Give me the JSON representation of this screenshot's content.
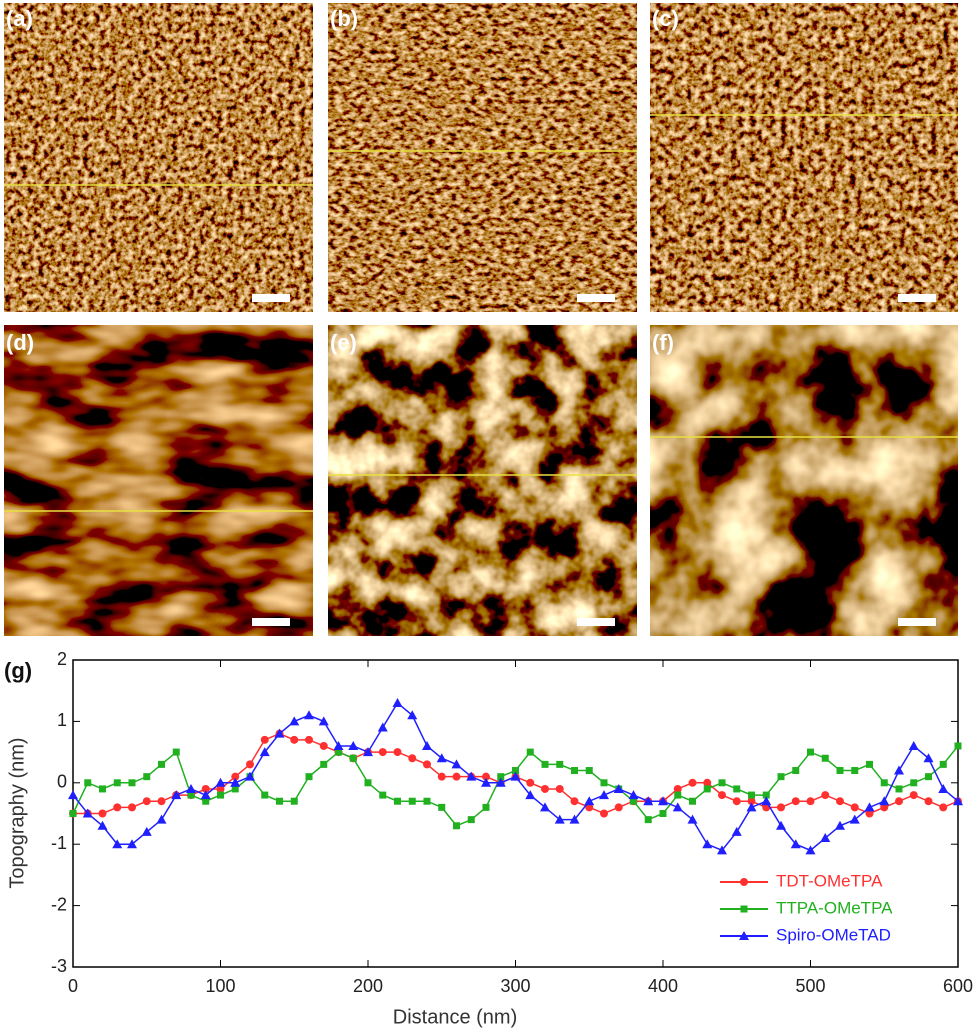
{
  "panels": [
    {
      "label": "(a)"
    },
    {
      "label": "(b)"
    },
    {
      "label": "(c)"
    },
    {
      "label": "(d)"
    },
    {
      "label": "(e)"
    },
    {
      "label": "(f)"
    }
  ],
  "chart_data": {
    "type": "line",
    "panel_label": "(g)",
    "xlabel": "Distance (nm)",
    "ylabel": "Topography (nm)",
    "xlim": [
      0,
      600
    ],
    "ylim": [
      -3,
      2
    ],
    "xticks": [
      0,
      100,
      200,
      300,
      400,
      500,
      600
    ],
    "yticks": [
      -3,
      -2,
      -1,
      0,
      1,
      2
    ],
    "x": [
      0,
      10,
      20,
      30,
      40,
      50,
      60,
      70,
      80,
      90,
      100,
      110,
      120,
      130,
      140,
      150,
      160,
      170,
      180,
      190,
      200,
      210,
      220,
      230,
      240,
      250,
      260,
      270,
      280,
      290,
      300,
      310,
      320,
      330,
      340,
      350,
      360,
      370,
      380,
      390,
      400,
      410,
      420,
      430,
      440,
      450,
      460,
      470,
      480,
      490,
      500,
      510,
      520,
      530,
      540,
      550,
      560,
      570,
      580,
      590,
      600
    ],
    "legend": "lower right",
    "series": [
      {
        "name": "TDT-OMeTPA",
        "color": "#ff3030",
        "marker": "circle",
        "values": [
          -0.5,
          -0.5,
          -0.5,
          -0.4,
          -0.4,
          -0.3,
          -0.3,
          -0.2,
          -0.2,
          -0.1,
          -0.1,
          0.1,
          0.3,
          0.7,
          0.8,
          0.7,
          0.7,
          0.6,
          0.5,
          0.4,
          0.5,
          0.5,
          0.5,
          0.4,
          0.3,
          0.1,
          0.1,
          0.1,
          0.1,
          0.0,
          0.1,
          0.0,
          -0.1,
          -0.1,
          -0.3,
          -0.4,
          -0.5,
          -0.4,
          -0.3,
          -0.3,
          -0.3,
          -0.1,
          0.0,
          0.0,
          -0.2,
          -0.3,
          -0.3,
          -0.4,
          -0.4,
          -0.3,
          -0.3,
          -0.2,
          -0.3,
          -0.4,
          -0.5,
          -0.4,
          -0.3,
          -0.2,
          -0.3,
          -0.4,
          -0.3
        ]
      },
      {
        "name": "TTPA-OMeTPA",
        "color": "#20b020",
        "marker": "square",
        "values": [
          -0.5,
          0.0,
          -0.1,
          0.0,
          0.0,
          0.1,
          0.3,
          0.5,
          -0.2,
          -0.3,
          -0.2,
          -0.1,
          0.1,
          -0.2,
          -0.3,
          -0.3,
          0.1,
          0.3,
          0.5,
          0.4,
          0.0,
          -0.2,
          -0.3,
          -0.3,
          -0.3,
          -0.4,
          -0.7,
          -0.6,
          -0.4,
          0.1,
          0.2,
          0.5,
          0.3,
          0.3,
          0.2,
          0.2,
          0.0,
          -0.1,
          -0.3,
          -0.6,
          -0.5,
          -0.2,
          -0.3,
          -0.1,
          0.0,
          -0.1,
          -0.2,
          -0.2,
          0.1,
          0.2,
          0.5,
          0.4,
          0.2,
          0.2,
          0.3,
          0.0,
          -0.1,
          0.0,
          0.1,
          0.3,
          0.6
        ]
      },
      {
        "name": "Spiro-OMeTAD",
        "color": "#2020ff",
        "marker": "triangle",
        "values": [
          -0.2,
          -0.5,
          -0.7,
          -1.0,
          -1.0,
          -0.8,
          -0.6,
          -0.2,
          -0.1,
          -0.2,
          0.0,
          0.0,
          0.1,
          0.5,
          0.8,
          1.0,
          1.1,
          1.0,
          0.6,
          0.6,
          0.5,
          0.9,
          1.3,
          1.1,
          0.6,
          0.4,
          0.3,
          0.1,
          0.0,
          0.0,
          0.1,
          -0.2,
          -0.4,
          -0.6,
          -0.6,
          -0.3,
          -0.2,
          -0.1,
          -0.2,
          -0.3,
          -0.3,
          -0.4,
          -0.6,
          -1.0,
          -1.1,
          -0.8,
          -0.4,
          -0.3,
          -0.7,
          -1.0,
          -1.1,
          -0.9,
          -0.7,
          -0.6,
          -0.4,
          -0.3,
          0.2,
          0.6,
          0.4,
          -0.1,
          -0.3
        ]
      }
    ]
  }
}
